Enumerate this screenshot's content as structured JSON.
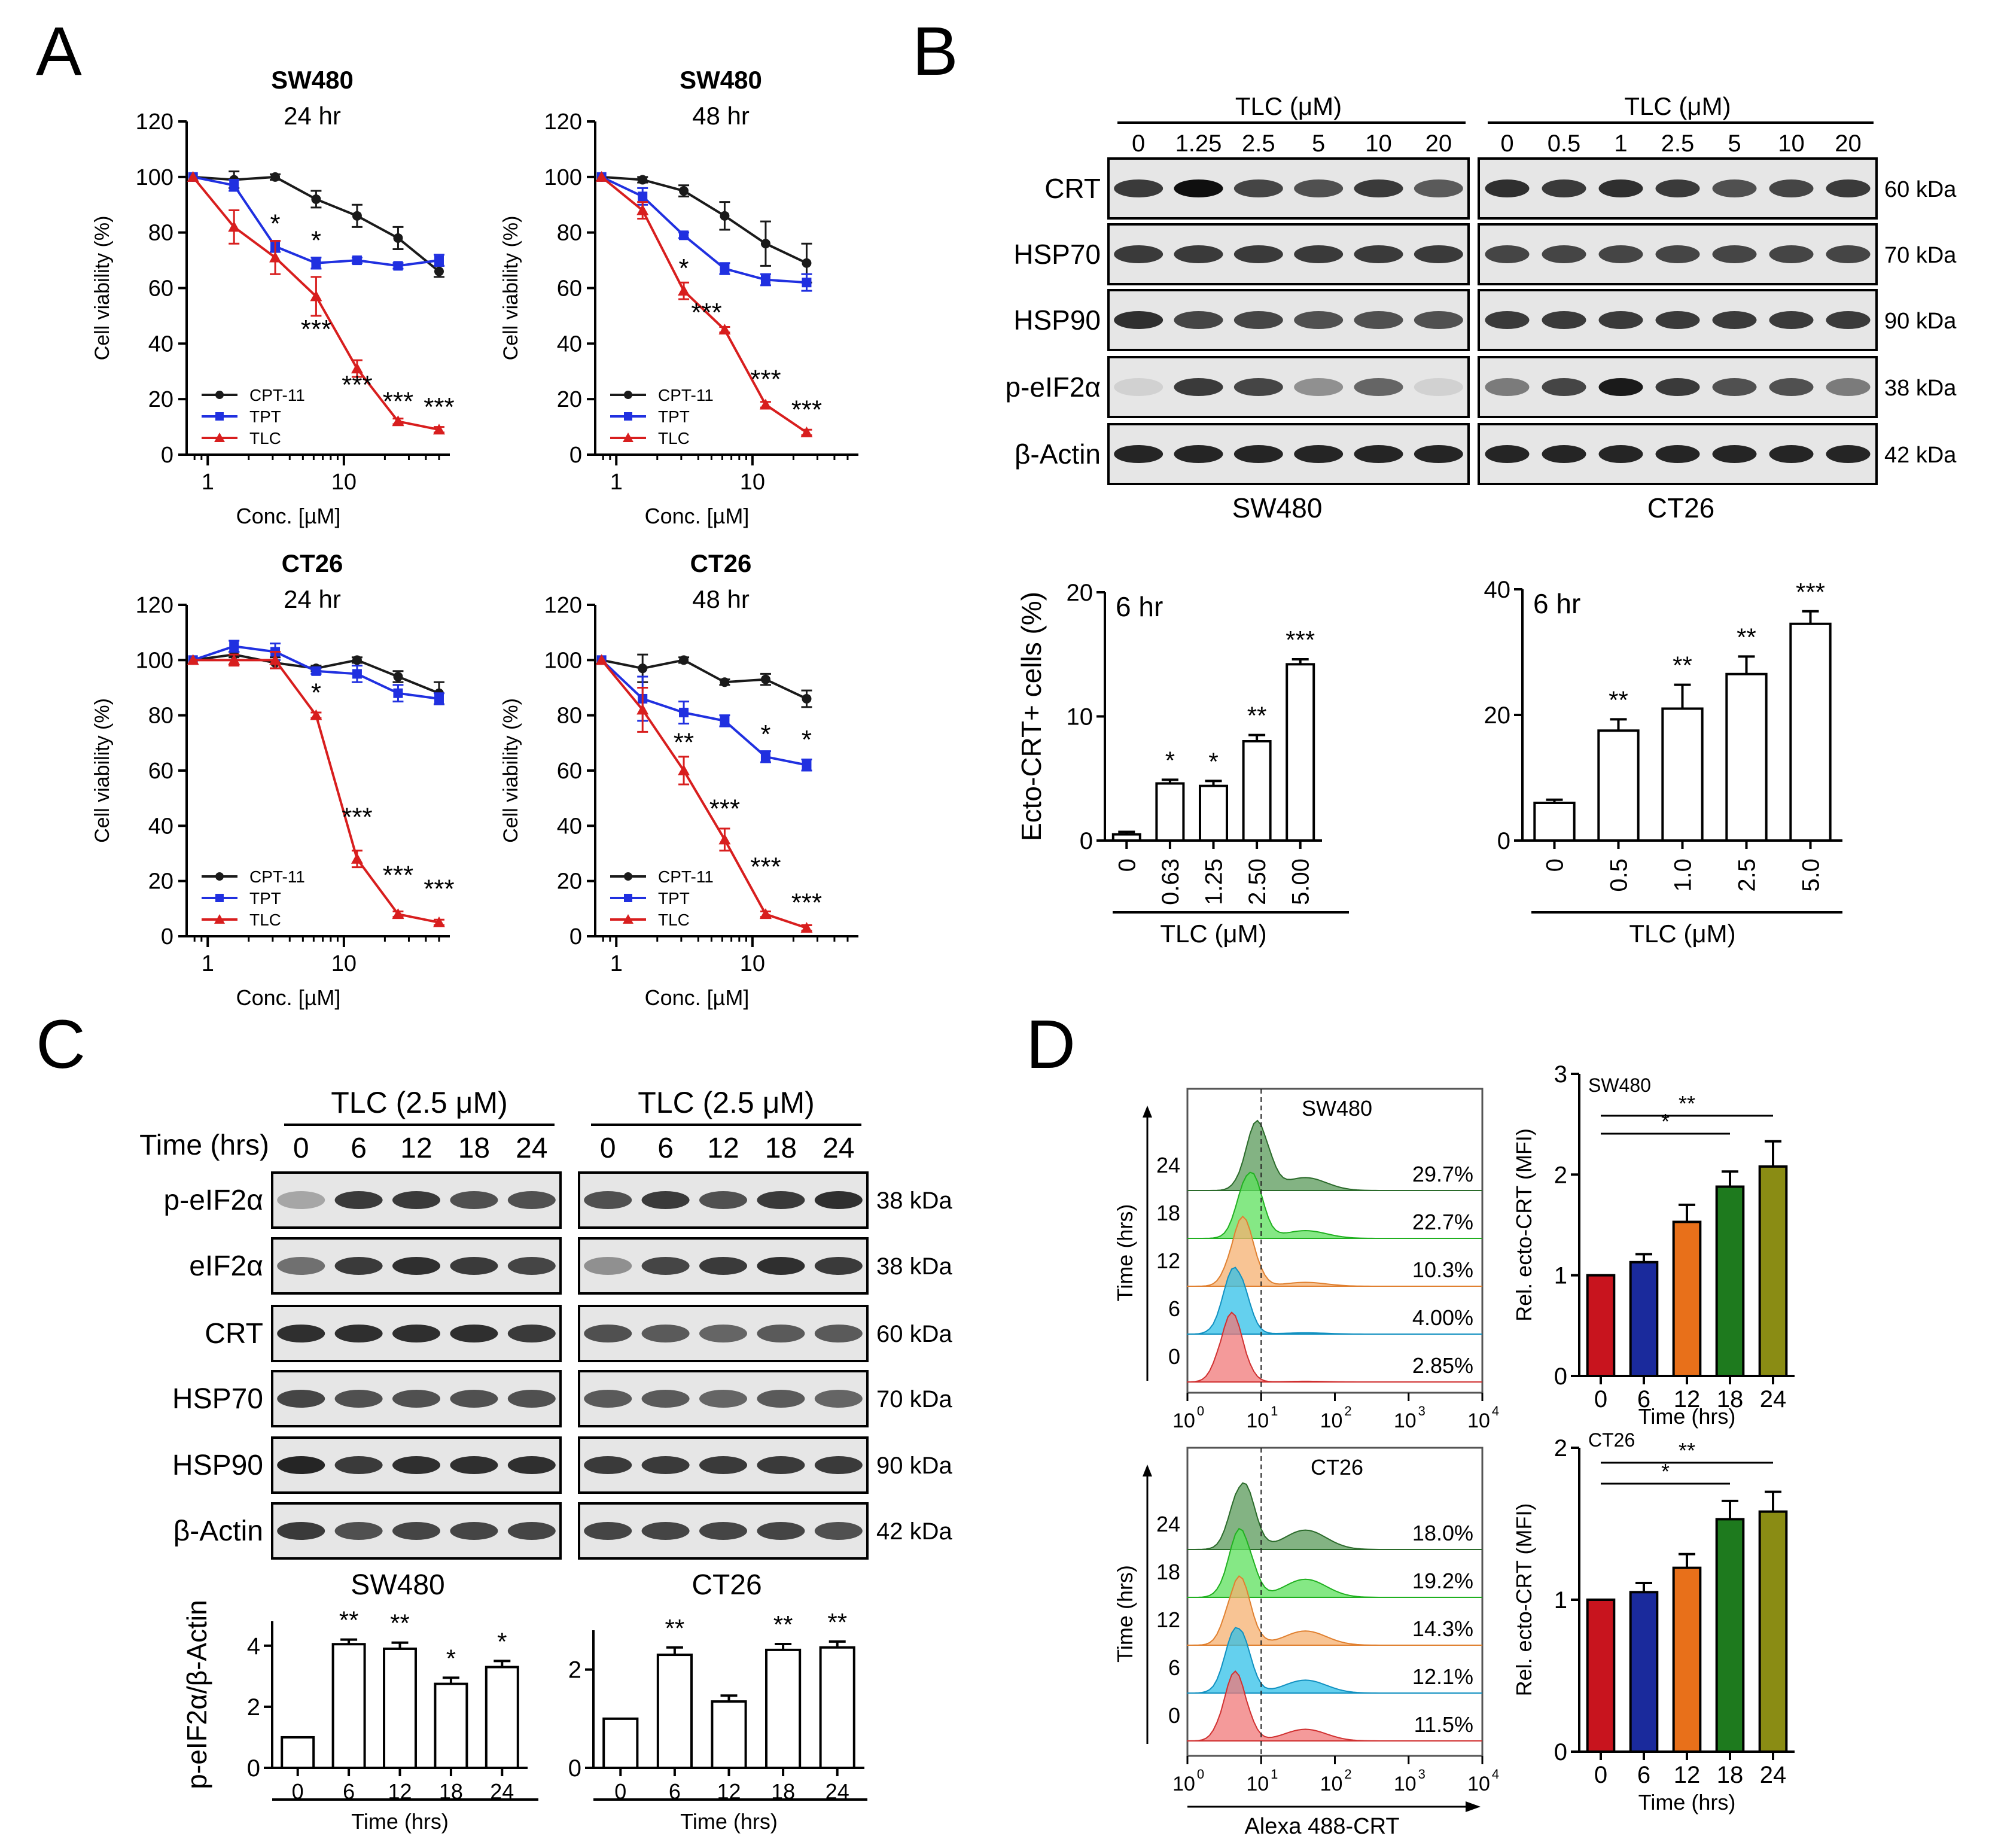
{
  "panel_letters": [
    "A",
    "B",
    "C",
    "D"
  ],
  "colors": {
    "cpt11": "#1a1a1a",
    "tpt": "#2030e0",
    "tlc": "#d81e1e"
  },
  "chart_data": [
    {
      "id": "A1",
      "type": "line",
      "title": "SW480",
      "subtitle": "24 hr",
      "xlabel": "Conc. [µM]",
      "ylabel": "Cell viability (%)",
      "xscale": "log",
      "xticks": [
        "1",
        "10"
      ],
      "ylim": [
        0,
        120
      ],
      "yticks": [
        0,
        20,
        40,
        60,
        80,
        100,
        120
      ],
      "x": [
        0.78,
        1.56,
        3.13,
        6.25,
        12.5,
        25,
        50
      ],
      "series": [
        {
          "name": "CPT-11",
          "values": [
            100,
            99,
            100,
            92,
            86,
            78,
            66
          ],
          "errors": [
            0,
            3,
            1,
            3,
            4,
            4,
            2
          ]
        },
        {
          "name": "TPT",
          "values": [
            100,
            97,
            75,
            69,
            70,
            68,
            70
          ],
          "errors": [
            0,
            2,
            2,
            2,
            1,
            1,
            2
          ]
        },
        {
          "name": "TLC",
          "values": [
            100,
            82,
            71,
            57,
            31,
            12,
            9
          ],
          "errors": [
            0,
            6,
            6,
            7,
            3,
            1,
            1
          ]
        }
      ],
      "legend_position": "bottom-left",
      "annotations": [
        {
          "x": 3.13,
          "y": 80,
          "text": "*"
        },
        {
          "x": 6.25,
          "y": 74,
          "text": "*"
        },
        {
          "x": 6.25,
          "y": 42,
          "text": "***"
        },
        {
          "x": 12.5,
          "y": 22,
          "text": "***"
        },
        {
          "x": 25,
          "y": 16,
          "text": "***"
        },
        {
          "x": 50,
          "y": 14,
          "text": "***"
        }
      ]
    },
    {
      "id": "A2",
      "type": "line",
      "title": "SW480",
      "subtitle": "48 hr",
      "xlabel": "Conc. [µM]",
      "ylabel": "Cell viability (%)",
      "xscale": "log",
      "xticks": [
        "1",
        "10"
      ],
      "ylim": [
        0,
        120
      ],
      "yticks": [
        0,
        20,
        40,
        60,
        80,
        100,
        120
      ],
      "x": [
        0.78,
        1.56,
        3.13,
        6.25,
        12.5,
        25
      ],
      "series": [
        {
          "name": "CPT-11",
          "values": [
            100,
            99,
            95,
            86,
            76,
            69
          ],
          "errors": [
            0,
            1,
            2,
            5,
            8,
            7
          ]
        },
        {
          "name": "TPT",
          "values": [
            100,
            93,
            79,
            67,
            63,
            62
          ],
          "errors": [
            0,
            3,
            1,
            2,
            2,
            3
          ]
        },
        {
          "name": "TLC",
          "values": [
            100,
            88,
            59,
            45,
            18,
            8
          ],
          "errors": [
            0,
            3,
            3,
            1,
            1,
            1
          ]
        }
      ],
      "legend_position": "bottom-left",
      "annotations": [
        {
          "x": 3.13,
          "y": 64,
          "text": "*"
        },
        {
          "x": 4.6,
          "y": 48,
          "text": "***"
        },
        {
          "x": 12.5,
          "y": 24,
          "text": "***"
        },
        {
          "x": 25,
          "y": 13,
          "text": "***"
        }
      ]
    },
    {
      "id": "A3",
      "type": "line",
      "title": "CT26",
      "subtitle": "24 hr",
      "xlabel": "Conc. [µM]",
      "ylabel": "Cell viability (%)",
      "xscale": "log",
      "xticks": [
        "1",
        "10"
      ],
      "ylim": [
        0,
        120
      ],
      "yticks": [
        0,
        20,
        40,
        60,
        80,
        100,
        120
      ],
      "x": [
        0.78,
        1.56,
        3.13,
        6.25,
        12.5,
        25,
        50
      ],
      "series": [
        {
          "name": "CPT-11",
          "values": [
            100,
            102,
            99,
            97,
            100,
            94,
            88
          ],
          "errors": [
            0,
            1,
            2,
            1,
            1,
            2,
            4
          ]
        },
        {
          "name": "TPT",
          "values": [
            100,
            105,
            103,
            96,
            95,
            88,
            86
          ],
          "errors": [
            0,
            2,
            3,
            1,
            3,
            3,
            2
          ]
        },
        {
          "name": "TLC",
          "values": [
            100,
            100,
            100,
            80,
            28,
            8,
            5
          ],
          "errors": [
            0,
            2,
            3,
            1,
            3,
            1,
            1
          ]
        }
      ],
      "legend_position": "bottom-left",
      "annotations": [
        {
          "x": 6.25,
          "y": 85,
          "text": "*"
        },
        {
          "x": 12.5,
          "y": 40,
          "text": "***"
        },
        {
          "x": 25,
          "y": 19,
          "text": "***"
        },
        {
          "x": 50,
          "y": 14,
          "text": "***"
        }
      ]
    },
    {
      "id": "A4",
      "type": "line",
      "title": "CT26",
      "subtitle": "48 hr",
      "xlabel": "Conc. [µM]",
      "ylabel": "Cell viability (%)",
      "xscale": "log",
      "xticks": [
        "1",
        "10"
      ],
      "ylim": [
        0,
        120
      ],
      "yticks": [
        0,
        20,
        40,
        60,
        80,
        100,
        120
      ],
      "x": [
        0.78,
        1.56,
        3.13,
        6.25,
        12.5,
        25
      ],
      "series": [
        {
          "name": "CPT-11",
          "values": [
            100,
            97,
            100,
            92,
            93,
            86
          ],
          "errors": [
            0,
            5,
            1,
            1,
            2,
            3
          ]
        },
        {
          "name": "TPT",
          "values": [
            100,
            86,
            81,
            78,
            65,
            62
          ],
          "errors": [
            0,
            8,
            4,
            2,
            2,
            2
          ]
        },
        {
          "name": "TLC",
          "values": [
            100,
            82,
            60,
            35,
            8,
            3
          ],
          "errors": [
            0,
            8,
            5,
            4,
            1,
            1
          ]
        }
      ],
      "legend_position": "bottom-left",
      "annotations": [
        {
          "x": 3.13,
          "y": 67,
          "text": "**"
        },
        {
          "x": 6.25,
          "y": 43,
          "text": "***"
        },
        {
          "x": 12.5,
          "y": 22,
          "text": "***"
        },
        {
          "x": 12.5,
          "y": 70,
          "text": "*"
        },
        {
          "x": 25,
          "y": 68,
          "text": "*"
        },
        {
          "x": 25,
          "y": 9,
          "text": "***"
        }
      ]
    },
    {
      "id": "B1",
      "type": "bar",
      "annotation_text": "6 hr",
      "ylabel": "Ecto-CRT+ cells (%)",
      "xlabel": "TLC (μM)",
      "categories": [
        "0",
        "0.63",
        "1.25",
        "2.50",
        "5.00"
      ],
      "values": [
        0.5,
        4.6,
        4.4,
        8.0,
        14.2
      ],
      "errors": [
        0.2,
        0.3,
        0.4,
        0.5,
        0.4
      ],
      "significance": [
        "",
        "*",
        "*",
        "**",
        "***"
      ],
      "ylim": [
        0,
        20
      ],
      "yticks": [
        0,
        10,
        20
      ]
    },
    {
      "id": "B2",
      "type": "bar",
      "annotation_text": "6 hr",
      "xlabel": "TLC (μM)",
      "categories": [
        "0",
        "0.5",
        "1.0",
        "2.5",
        "5.0"
      ],
      "values": [
        6,
        17.5,
        21,
        26.5,
        34.5
      ],
      "errors": [
        0.5,
        1.8,
        3.8,
        2.8,
        2.0
      ],
      "significance": [
        "",
        "**",
        "**",
        "**",
        "***"
      ],
      "ylim": [
        0,
        40
      ],
      "yticks": [
        0,
        20,
        40
      ]
    },
    {
      "id": "C1",
      "type": "bar",
      "title": "SW480",
      "ylabel": "p-eIF2α/β-Actin",
      "xlabel": "Time (hrs)",
      "categories": [
        "0",
        "6",
        "12",
        "18",
        "24"
      ],
      "values": [
        1.0,
        4.05,
        3.9,
        2.75,
        3.3
      ],
      "errors": [
        0,
        0.15,
        0.2,
        0.2,
        0.2
      ],
      "significance": [
        "",
        "**",
        "**",
        "*",
        "*"
      ],
      "ylim": [
        0,
        4.8
      ],
      "yticks": [
        0,
        2,
        4
      ]
    },
    {
      "id": "C2",
      "type": "bar",
      "title": "CT26",
      "xlabel": "Time (hrs)",
      "categories": [
        "0",
        "6",
        "12",
        "18",
        "24"
      ],
      "values": [
        1.0,
        2.3,
        1.35,
        2.4,
        2.45
      ],
      "errors": [
        0,
        0.15,
        0.12,
        0.12,
        0.12
      ],
      "significance": [
        "",
        "**",
        "",
        "**",
        "**"
      ],
      "ylim": [
        0,
        2.8
      ],
      "yticks": [
        0,
        2
      ]
    },
    {
      "id": "D1",
      "type": "bar",
      "title": "SW480",
      "ylabel": "Rel. ecto-CRT (MFI)",
      "xlabel": "Time (hrs)",
      "categories": [
        "0",
        "6",
        "12",
        "18",
        "24"
      ],
      "values": [
        1.0,
        1.13,
        1.53,
        1.88,
        2.08
      ],
      "errors": [
        0,
        0.08,
        0.17,
        0.15,
        0.25
      ],
      "colors": [
        "#c8141e",
        "#1a2a9c",
        "#e8701a",
        "#1e7a1e",
        "#8a8c14"
      ],
      "ylim": [
        0,
        3
      ],
      "yticks": [
        0,
        1,
        2,
        3
      ],
      "brackets": [
        {
          "from": 0,
          "to": 3,
          "text": "*"
        },
        {
          "from": 0,
          "to": 4,
          "text": "**"
        }
      ]
    },
    {
      "id": "D2",
      "type": "bar",
      "title": "CT26",
      "ylabel": "Rel. ecto-CRT (MFI)",
      "xlabel": "Time (hrs)",
      "categories": [
        "0",
        "6",
        "12",
        "18",
        "24"
      ],
      "values": [
        1.0,
        1.05,
        1.21,
        1.53,
        1.58
      ],
      "errors": [
        0,
        0.06,
        0.09,
        0.12,
        0.13
      ],
      "colors": [
        "#c8141e",
        "#1a2a9c",
        "#e8701a",
        "#1e7a1e",
        "#8a8c14"
      ],
      "ylim": [
        0,
        2
      ],
      "yticks": [
        0,
        1,
        2
      ],
      "brackets": [
        {
          "from": 0,
          "to": 3,
          "text": "*"
        },
        {
          "from": 0,
          "to": 4,
          "text": "**"
        }
      ]
    }
  ],
  "blots": {
    "B": {
      "header": "TLC (μM)",
      "sw480_lanes": [
        "0",
        "1.25",
        "2.5",
        "5",
        "10",
        "20"
      ],
      "ct26_lanes": [
        "0",
        "0.5",
        "1",
        "2.5",
        "5",
        "10",
        "20"
      ],
      "rows": [
        {
          "label": "CRT",
          "kda": "60 kDa",
          "sw480": [
            0.8,
            1.0,
            0.75,
            0.7,
            0.8,
            0.65
          ],
          "ct26": [
            0.85,
            0.8,
            0.85,
            0.8,
            0.7,
            0.75,
            0.8
          ]
        },
        {
          "label": "HSP70",
          "kda": "70 kDa",
          "sw480": [
            0.8,
            0.8,
            0.8,
            0.8,
            0.8,
            0.8
          ],
          "ct26": [
            0.75,
            0.75,
            0.75,
            0.75,
            0.75,
            0.75,
            0.75
          ]
        },
        {
          "label": "HSP90",
          "kda": "90 kDa",
          "sw480": [
            0.85,
            0.75,
            0.75,
            0.7,
            0.7,
            0.7
          ],
          "ct26": [
            0.8,
            0.8,
            0.8,
            0.8,
            0.8,
            0.8,
            0.8
          ]
        },
        {
          "label": "p-eIF2α",
          "kda": "38 kDa",
          "sw480": [
            0.1,
            0.8,
            0.75,
            0.4,
            0.6,
            0.1
          ],
          "ct26": [
            0.5,
            0.75,
            0.95,
            0.8,
            0.7,
            0.7,
            0.5
          ]
        },
        {
          "label": "β-Actin",
          "kda": "42 kDa",
          "sw480": [
            0.9,
            0.9,
            0.9,
            0.9,
            0.9,
            0.9
          ],
          "ct26": [
            0.9,
            0.9,
            0.9,
            0.9,
            0.9,
            0.9,
            0.9
          ]
        }
      ],
      "sw480_label": "SW480",
      "ct26_label": "CT26"
    },
    "C": {
      "header": "TLC (2.5 μM)",
      "time_label": "Time (hrs)",
      "lanes": [
        "0",
        "6",
        "12",
        "18",
        "24"
      ],
      "rows": [
        {
          "label": "p-eIF2α",
          "kda": "38 kDa",
          "sw480": [
            0.3,
            0.8,
            0.8,
            0.7,
            0.7
          ],
          "ct26": [
            0.7,
            0.8,
            0.7,
            0.8,
            0.85
          ]
        },
        {
          "label": "eIF2α",
          "kda": "38 kDa",
          "sw480": [
            0.55,
            0.8,
            0.85,
            0.8,
            0.75
          ],
          "ct26": [
            0.4,
            0.75,
            0.8,
            0.85,
            0.8
          ]
        },
        {
          "label": "CRT",
          "kda": "60 kDa",
          "sw480": [
            0.85,
            0.85,
            0.85,
            0.85,
            0.8
          ],
          "ct26": [
            0.7,
            0.65,
            0.6,
            0.65,
            0.65
          ]
        },
        {
          "label": "HSP70",
          "kda": "70 kDa",
          "sw480": [
            0.75,
            0.7,
            0.7,
            0.7,
            0.7
          ],
          "ct26": [
            0.65,
            0.65,
            0.6,
            0.65,
            0.6
          ]
        },
        {
          "label": "HSP90",
          "kda": "90 kDa",
          "sw480": [
            0.9,
            0.8,
            0.85,
            0.85,
            0.85
          ],
          "ct26": [
            0.8,
            0.8,
            0.8,
            0.8,
            0.8
          ]
        },
        {
          "label": "β-Actin",
          "kda": "42 kDa",
          "sw480": [
            0.8,
            0.7,
            0.75,
            0.75,
            0.75
          ],
          "ct26": [
            0.75,
            0.75,
            0.75,
            0.75,
            0.7
          ]
        }
      ]
    }
  },
  "flow": {
    "xlabel": "Alexa 488-CRT",
    "ylabel": "Time (hrs)",
    "xticks": [
      "10",
      "10",
      "10",
      "10",
      "10"
    ],
    "xtick_exps": [
      "0",
      "1",
      "2",
      "3",
      "4"
    ],
    "time_labels": [
      "24",
      "18",
      "12",
      "6",
      "0"
    ],
    "fills": [
      "#5a9a5a",
      "#5ce05c",
      "#f5b070",
      "#30c0e8",
      "#f07878"
    ],
    "strokes": [
      "#2a6a2a",
      "#20b020",
      "#e08030",
      "#1090c0",
      "#d03030"
    ],
    "panels": [
      {
        "title": "SW480",
        "percents": [
          "29.7%",
          "22.7%",
          "10.3%",
          "4.00%",
          "2.85%"
        ],
        "shifts": [
          0.35,
          0.25,
          0.15,
          0.05,
          0.0
        ],
        "tails": [
          0.2,
          0.12,
          0.06,
          0.02,
          0.01
        ]
      },
      {
        "title": "CT26",
        "percents": [
          "18.0%",
          "19.2%",
          "14.3%",
          "12.1%",
          "11.5%"
        ],
        "shifts": [
          0.15,
          0.12,
          0.1,
          0.08,
          0.05
        ],
        "tails": [
          0.3,
          0.28,
          0.22,
          0.2,
          0.18
        ]
      }
    ]
  }
}
